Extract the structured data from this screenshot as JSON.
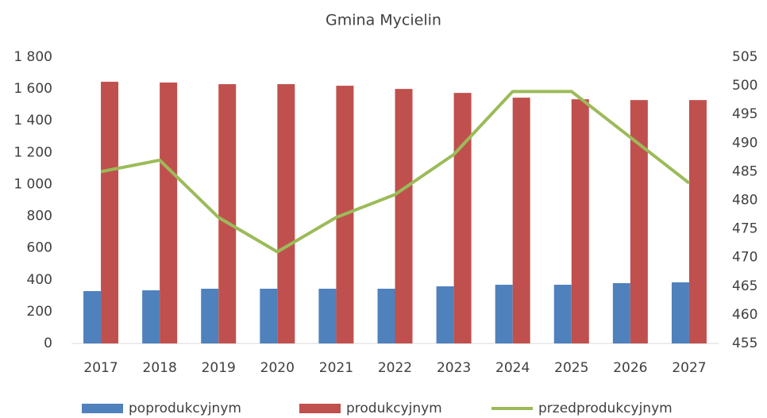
{
  "chart_data": {
    "type": "bar-line",
    "title": "Gmina Mycielin",
    "categories": [
      "2017",
      "2018",
      "2019",
      "2020",
      "2021",
      "2022",
      "2023",
      "2024",
      "2025",
      "2026",
      "2027"
    ],
    "series": [
      {
        "name": "poprodukcyjnym",
        "type": "bar",
        "color": "#4f81bd",
        "values": [
          329,
          334,
          344,
          344,
          344,
          344,
          359,
          369,
          369,
          379,
          384
        ]
      },
      {
        "name": "produkcyjnym",
        "type": "bar",
        "color": "#c0504d",
        "values": [
          1645,
          1640,
          1630,
          1630,
          1620,
          1600,
          1575,
          1545,
          1535,
          1530,
          1530
        ]
      },
      {
        "name": "przedprodukcyjnym",
        "type": "line",
        "axis": "y2",
        "color": "#9bbb59",
        "values": [
          485,
          487,
          477,
          471,
          477,
          481,
          488,
          499,
          499,
          491,
          483
        ]
      }
    ],
    "ylim": [
      0,
      1800
    ],
    "yticks": [
      0,
      200,
      400,
      600,
      800,
      {
        "value": 1000,
        "label": "1 000"
      },
      {
        "value": 1200,
        "label": "1 200"
      },
      {
        "value": 1400,
        "label": "1 400"
      },
      {
        "value": 1600,
        "label": "1 600"
      },
      {
        "value": 1800,
        "label": "1 800"
      }
    ],
    "y2lim": [
      455,
      505
    ],
    "y2ticks": [
      455,
      460,
      465,
      470,
      475,
      480,
      485,
      490,
      495,
      500,
      505
    ],
    "grid": false,
    "legend": "bottom"
  }
}
